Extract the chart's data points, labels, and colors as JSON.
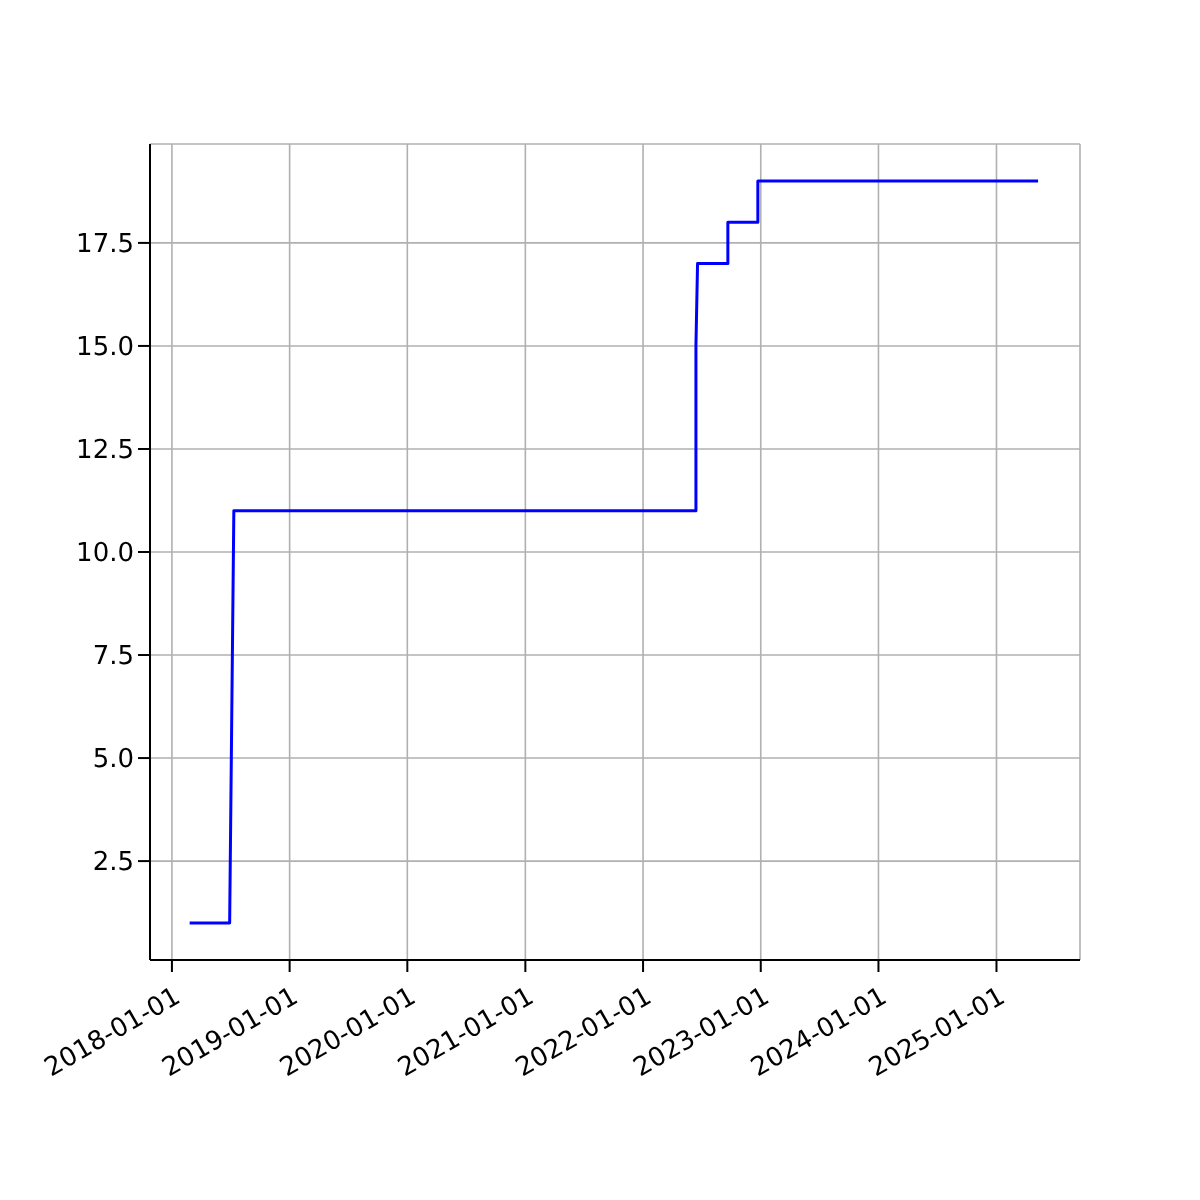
{
  "chart_data": {
    "type": "line",
    "x": [
      "2018-02-25",
      "2018-06-29",
      "2018-07-12",
      "2022-06-14",
      "2022-06-14",
      "2022-06-19",
      "2022-09-21",
      "2022-09-21",
      "2022-12-23",
      "2022-12-23",
      "2025-05-10"
    ],
    "series": [
      {
        "color": "#0000ff",
        "values": [
          1,
          1,
          11,
          11,
          15,
          17,
          17,
          18,
          18,
          19,
          19
        ]
      }
    ],
    "xlim": [
      "2017-10-25",
      "2025-09-17"
    ],
    "xticks": [
      "2018-01-01",
      "2019-01-01",
      "2020-01-01",
      "2021-01-01",
      "2022-01-01",
      "2023-01-01",
      "2024-01-01",
      "2025-01-01"
    ],
    "ylim": [
      0.1,
      19.9
    ],
    "yticks": [
      2.5,
      {
        "value": 5,
        "label": "5.0"
      },
      7.5,
      {
        "value": 10,
        "label": "10.0"
      },
      12.5,
      {
        "value": 15,
        "label": "15.0"
      },
      17.5
    ],
    "grid": true,
    "marker": "none",
    "line_style": "solid"
  }
}
